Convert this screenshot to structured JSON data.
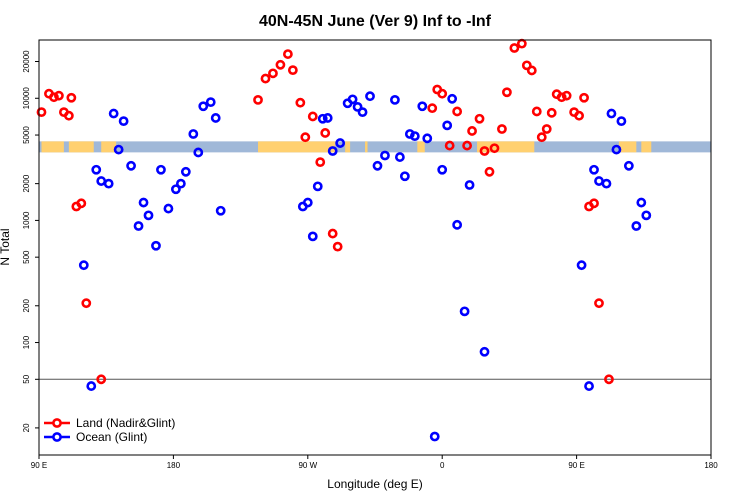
{
  "chart_data": {
    "type": "scatter",
    "title": "40N-45N June (Ver 9)   Inf to -Inf",
    "xlabel": "Longitude (deg E)",
    "ylabel": "N Total",
    "xlim": [
      -90,
      180
    ],
    "ylim_log": [
      12,
      30000
    ],
    "y_scale": "log",
    "x_ticks": [
      {
        "value": -90,
        "label": "90 E"
      },
      {
        "value": -36,
        "label": "180"
      },
      {
        "value": 18,
        "label": "90 W"
      },
      {
        "value": 72,
        "label": "0"
      },
      {
        "value": 126,
        "label": "90 E"
      },
      {
        "value": 180,
        "label": "180"
      }
    ],
    "y_ticks": [
      {
        "value": 20,
        "label": "20"
      },
      {
        "value": 50,
        "label": "50"
      },
      {
        "value": 100,
        "label": "100"
      },
      {
        "value": 200,
        "label": "200"
      },
      {
        "value": 500,
        "label": "500"
      },
      {
        "value": 1000,
        "label": "1000"
      },
      {
        "value": 2000,
        "label": "2000"
      },
      {
        "value": 5000,
        "label": "5000"
      },
      {
        "value": 10000,
        "label": "10000"
      },
      {
        "value": 20000,
        "label": "20000"
      }
    ],
    "reference_line": 50,
    "land_band_level": 4000,
    "land_mask_colors": {
      "land": "#ffd070",
      "ocean": "#a0b8d8"
    },
    "land_segments": [
      [
        -89,
        -80
      ],
      [
        -78,
        -68
      ],
      [
        -65,
        -59
      ],
      [
        -2,
        29
      ],
      [
        33,
        35
      ],
      [
        41,
        42
      ],
      [
        62,
        65
      ],
      [
        86,
        109
      ],
      [
        143,
        150
      ],
      [
        152,
        156
      ]
    ],
    "legend": {
      "position": "bottom-left",
      "entries": [
        {
          "label": "Land (Nadir&Glint)",
          "color": "#ff0000"
        },
        {
          "label": "Ocean (Glint)",
          "color": "#0000ff"
        }
      ]
    },
    "series": [
      {
        "name": "Land (Nadir&Glint)",
        "color": "#ff0000",
        "points": [
          [
            -89,
            7700
          ],
          [
            -86,
            10900
          ],
          [
            -84,
            10200
          ],
          [
            -82,
            10500
          ],
          [
            -80,
            7700
          ],
          [
            -78,
            7200
          ],
          [
            -77,
            10100
          ],
          [
            -75,
            1300
          ],
          [
            -73,
            1380
          ],
          [
            -71,
            210
          ],
          [
            -65,
            50
          ],
          [
            -2,
            9700
          ],
          [
            1,
            14500
          ],
          [
            4,
            16000
          ],
          [
            7,
            18800
          ],
          [
            10,
            23000
          ],
          [
            12,
            17000
          ],
          [
            15,
            9200
          ],
          [
            17,
            4800
          ],
          [
            20,
            7100
          ],
          [
            23,
            3000
          ],
          [
            25,
            5200
          ],
          [
            28,
            780
          ],
          [
            30,
            610
          ],
          [
            68,
            8300
          ],
          [
            70,
            11800
          ],
          [
            72,
            10900
          ],
          [
            75,
            4100
          ],
          [
            78,
            7800
          ],
          [
            82,
            4100
          ],
          [
            84,
            5400
          ],
          [
            87,
            6800
          ],
          [
            89,
            3700
          ],
          [
            91,
            2500
          ],
          [
            93,
            3900
          ],
          [
            96,
            5600
          ],
          [
            98,
            11200
          ],
          [
            101,
            25800
          ],
          [
            104,
            28000
          ],
          [
            106,
            18600
          ],
          [
            108,
            16900
          ],
          [
            110,
            7800
          ],
          [
            112,
            4800
          ],
          [
            114,
            5600
          ],
          [
            116,
            7600
          ],
          [
            118,
            10800
          ],
          [
            120,
            10200
          ],
          [
            122,
            10500
          ],
          [
            125,
            7700
          ],
          [
            127,
            7200
          ],
          [
            129,
            10100
          ],
          [
            131,
            1300
          ],
          [
            133,
            1380
          ],
          [
            135,
            210
          ],
          [
            139,
            50
          ]
        ]
      },
      {
        "name": "Ocean (Glint)",
        "color": "#0000ff",
        "points": [
          [
            -72,
            430
          ],
          [
            -69,
            44
          ],
          [
            -67,
            2600
          ],
          [
            -65,
            2100
          ],
          [
            -62,
            2000
          ],
          [
            -60,
            7500
          ],
          [
            -58,
            3800
          ],
          [
            -56,
            6500
          ],
          [
            -53,
            2800
          ],
          [
            -50,
            900
          ],
          [
            -48,
            1400
          ],
          [
            -46,
            1100
          ],
          [
            -43,
            620
          ],
          [
            -41,
            2600
          ],
          [
            -38,
            1250
          ],
          [
            -35,
            1800
          ],
          [
            -33,
            2000
          ],
          [
            -31,
            2500
          ],
          [
            -28,
            5100
          ],
          [
            -26,
            3600
          ],
          [
            -24,
            8600
          ],
          [
            -21,
            9300
          ],
          [
            -19,
            6900
          ],
          [
            -17,
            1200
          ],
          [
            16,
            1300
          ],
          [
            18,
            1400
          ],
          [
            20,
            740
          ],
          [
            22,
            1900
          ],
          [
            24,
            6800
          ],
          [
            26,
            6900
          ],
          [
            28,
            3700
          ],
          [
            31,
            4300
          ],
          [
            34,
            9100
          ],
          [
            36,
            9800
          ],
          [
            38,
            8500
          ],
          [
            40,
            7700
          ],
          [
            43,
            10400
          ],
          [
            46,
            2800
          ],
          [
            49,
            3400
          ],
          [
            53,
            9700
          ],
          [
            55,
            3300
          ],
          [
            57,
            2300
          ],
          [
            59,
            5100
          ],
          [
            61,
            4900
          ],
          [
            64,
            8600
          ],
          [
            66,
            4700
          ],
          [
            69,
            17
          ],
          [
            72,
            2600
          ],
          [
            74,
            6000
          ],
          [
            76,
            9900
          ],
          [
            78,
            920
          ],
          [
            81,
            180
          ],
          [
            83,
            1950
          ],
          [
            89,
            84
          ],
          [
            128,
            430
          ],
          [
            131,
            44
          ],
          [
            133,
            2600
          ],
          [
            135,
            2100
          ],
          [
            138,
            2000
          ],
          [
            140,
            7500
          ],
          [
            142,
            3800
          ],
          [
            144,
            6500
          ],
          [
            147,
            2800
          ],
          [
            150,
            900
          ],
          [
            152,
            1400
          ],
          [
            154,
            1100
          ]
        ]
      }
    ]
  }
}
